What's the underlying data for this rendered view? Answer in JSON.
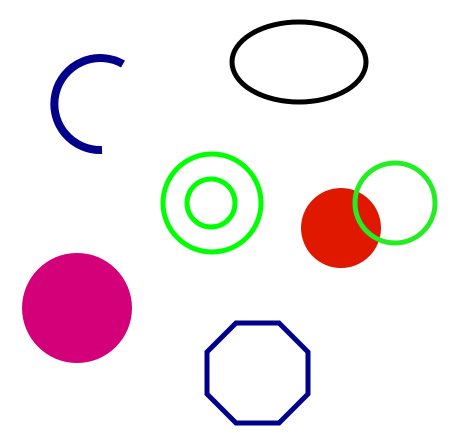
{
  "scene": {
    "background": "#ffffff",
    "shapes": [
      {
        "id": "blue-arc",
        "kind": "arc",
        "stroke": "#00008b",
        "fill": "none"
      },
      {
        "id": "black-ellipse",
        "kind": "ellipse",
        "stroke": "#000000",
        "fill": "none"
      },
      {
        "id": "green-ring-outer",
        "kind": "circle",
        "stroke": "#00ff00",
        "fill": "none"
      },
      {
        "id": "green-ring-inner",
        "kind": "circle",
        "stroke": "#00ff00",
        "fill": "none"
      },
      {
        "id": "red-disc",
        "kind": "circle",
        "stroke": "none",
        "fill": "#e01800"
      },
      {
        "id": "green-ring-right",
        "kind": "circle",
        "stroke": "#22ee22",
        "fill": "none"
      },
      {
        "id": "magenta-disc",
        "kind": "circle",
        "stroke": "none",
        "fill": "#d4007a"
      },
      {
        "id": "blue-octagon",
        "kind": "octagon",
        "stroke": "#00008b",
        "fill": "none"
      }
    ]
  }
}
